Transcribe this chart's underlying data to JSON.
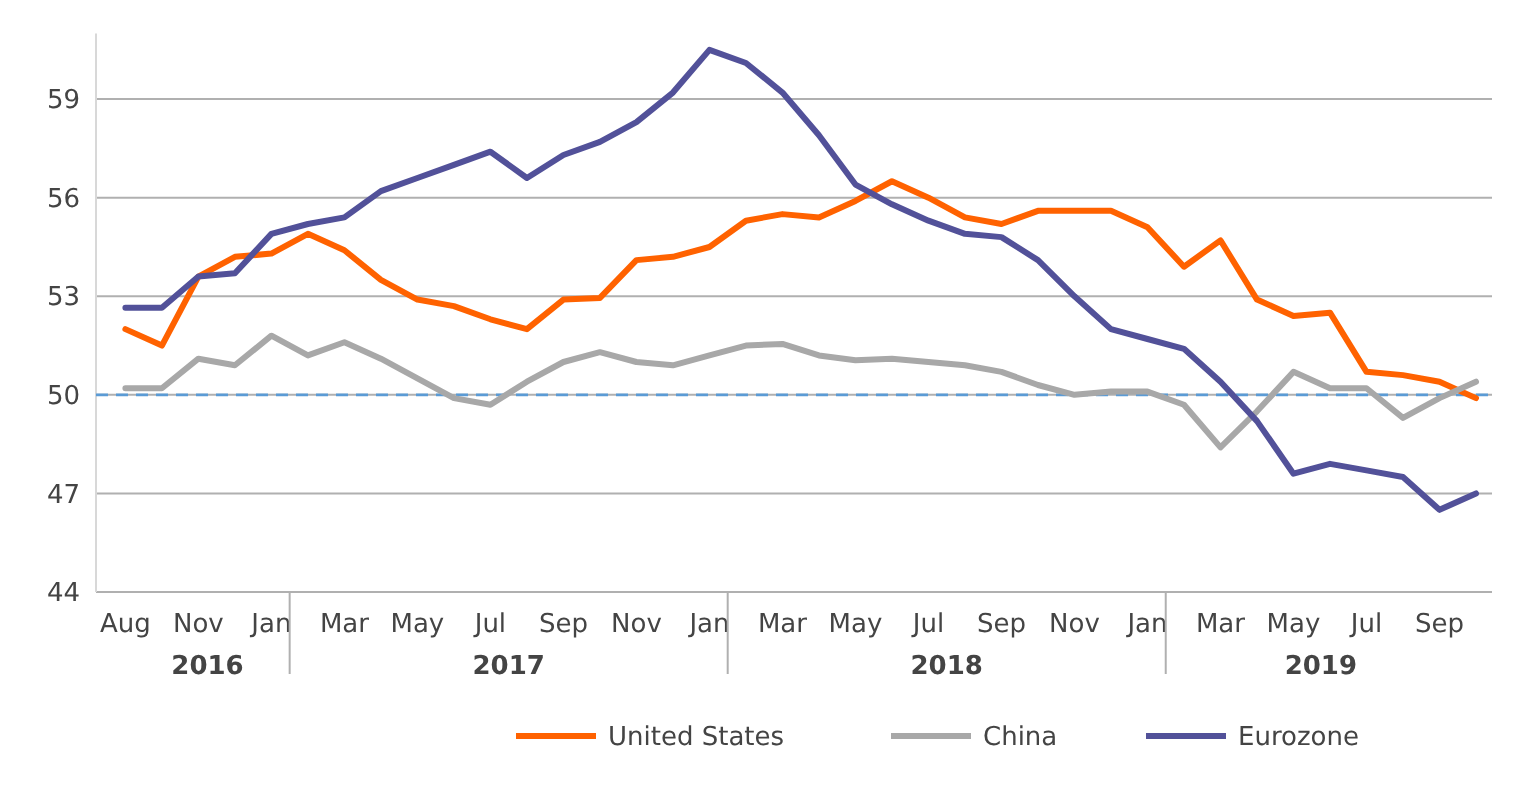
{
  "chart_data": {
    "type": "line",
    "categories": [
      "Aug",
      null,
      "Nov",
      null,
      "Jan",
      null,
      "Mar",
      null,
      "May",
      null,
      "Jul",
      null,
      "Sep",
      null,
      "Nov",
      null,
      "Jan",
      null,
      "Mar",
      null,
      "May",
      null,
      "Jul",
      null,
      "Sep",
      null,
      "Nov",
      null,
      "Jan",
      null,
      "Mar",
      null,
      "May",
      null,
      "Jul",
      null,
      "Sep",
      null
    ],
    "series": [
      {
        "name": "United States",
        "color": "#ff6200",
        "values": [
          52.0,
          51.5,
          53.6,
          54.2,
          54.3,
          54.9,
          54.4,
          53.5,
          52.9,
          52.7,
          52.3,
          52.0,
          52.9,
          52.95,
          54.1,
          54.2,
          54.5,
          55.3,
          55.5,
          55.4,
          55.9,
          56.5,
          56.0,
          55.4,
          55.2,
          55.6,
          55.6,
          55.6,
          55.1,
          53.9,
          54.7,
          52.9,
          52.4,
          52.5,
          50.7,
          50.6,
          50.4,
          49.9
        ]
      },
      {
        "name": "China",
        "color": "#a8a8a8",
        "values": [
          50.2,
          50.2,
          51.1,
          50.9,
          51.8,
          51.2,
          51.6,
          51.1,
          50.5,
          49.9,
          49.7,
          50.4,
          51.0,
          51.3,
          51.0,
          50.9,
          51.2,
          51.5,
          51.55,
          51.2,
          51.05,
          51.1,
          51.0,
          50.9,
          50.7,
          50.3,
          50.0,
          50.1,
          50.1,
          49.7,
          48.4,
          49.5,
          50.7,
          50.2,
          50.2,
          49.3,
          49.9,
          50.4
        ]
      },
      {
        "name": "Eurozone",
        "color": "#525199",
        "values": [
          52.65,
          52.65,
          53.6,
          53.7,
          54.9,
          55.2,
          55.4,
          56.2,
          56.6,
          57.0,
          57.4,
          56.6,
          57.3,
          57.7,
          58.3,
          59.2,
          60.5,
          60.1,
          59.2,
          57.9,
          56.4,
          55.8,
          55.3,
          54.9,
          54.8,
          54.1,
          53.0,
          52.0,
          51.7,
          51.4,
          50.4,
          49.2,
          47.6,
          47.9,
          47.7,
          47.5,
          46.5,
          47.0
        ]
      }
    ],
    "ylim": [
      44,
      61
    ],
    "yticks": [
      44,
      47,
      50,
      53,
      56,
      59
    ],
    "grid": "y",
    "legend": "bottom",
    "ref_lines": [
      {
        "axis": "y",
        "value": 50,
        "color": "#5b9bd5",
        "line_style": "dashed"
      }
    ],
    "annotations": [
      "2016",
      "2017",
      "2018",
      "2019"
    ]
  }
}
